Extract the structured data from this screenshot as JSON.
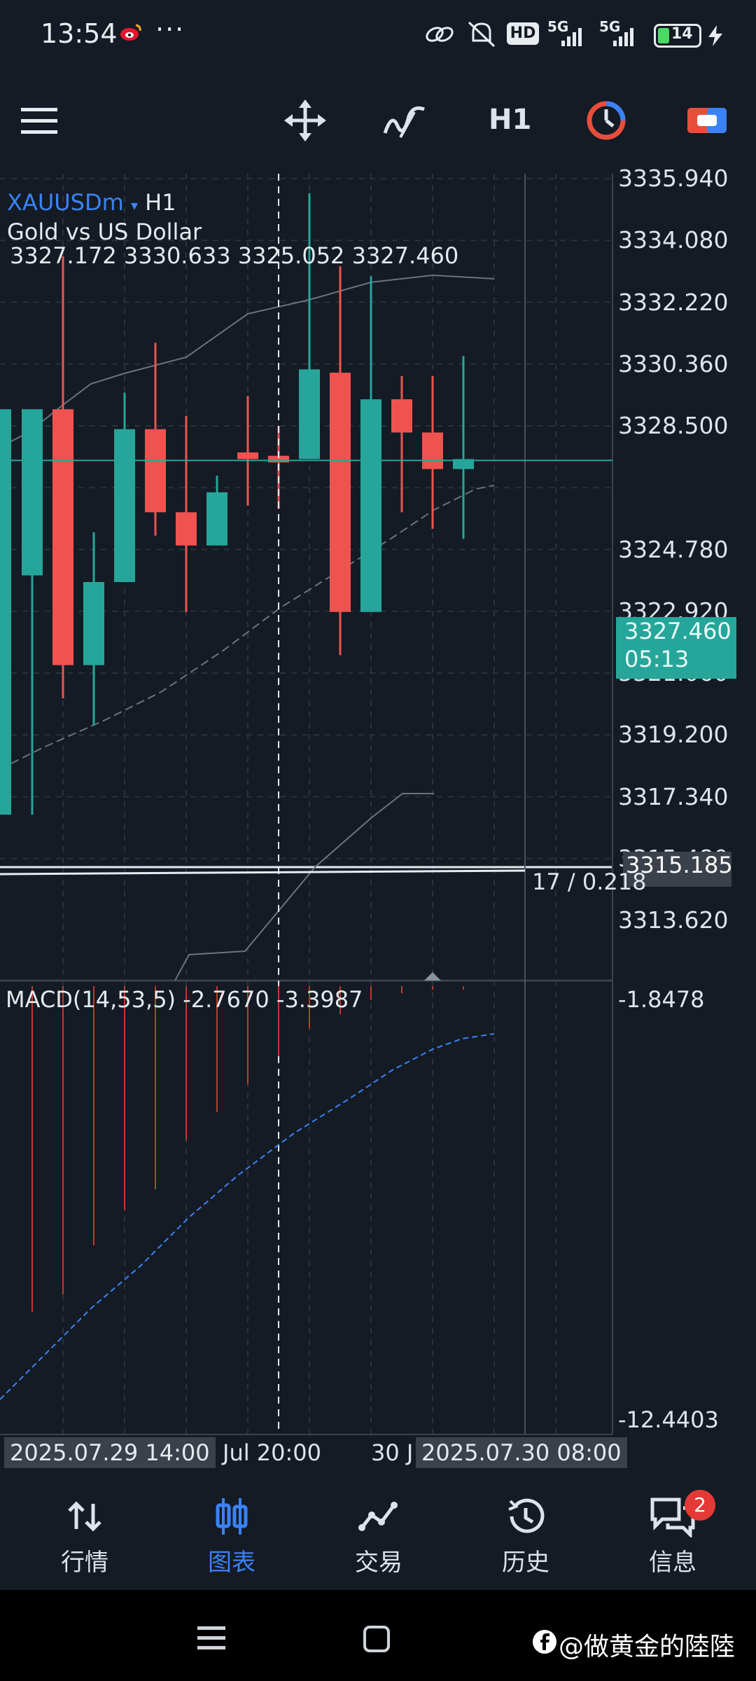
{
  "status_bar": {
    "time": "13:54",
    "more": "···",
    "network_1": "5G",
    "network_2": "5G",
    "battery": "14",
    "hd_badge": "HD"
  },
  "toolbar": {
    "timeframe": "H1",
    "icons": [
      "menu-icon",
      "crosshair-move-icon",
      "indicators-icon",
      "timeframe-label",
      "one-click-trading-icon",
      "trade-panel-icon"
    ]
  },
  "chart": {
    "symbol": "XAUUSDm",
    "timeframe": "H1",
    "description": "Gold vs US Dollar",
    "ohlc": "3327.172 3330.633 3325.052 3327.460",
    "price_axis": [
      "3335.940",
      "3334.080",
      "3332.220",
      "3330.360",
      "3328.500",
      "3324.780",
      "3322.920",
      "3321.060",
      "3319.200",
      "3317.340",
      "3315.480",
      "3313.620"
    ],
    "last_price": "3327.460",
    "countdown": "05:13",
    "crosshair_price": "3315.185",
    "crosshair_info": "17 / 0.218",
    "macd_label": "MACD(14,53,5) -2.7670 -3.3987",
    "macd_axis_top": "-1.8478",
    "macd_axis_bottom": "-12.4403",
    "date_left_box": "2025.07.29 14:00",
    "date_mid": "Jul 20:00",
    "date_mid2": "30 J",
    "date_right_box": "2025.07.30 08:00",
    "colors": {
      "bull": "#26a69a",
      "bear": "#ef5350",
      "accent": "#3b82f6",
      "bg": "#141b24"
    }
  },
  "chart_data": {
    "type": "candlestick",
    "symbol": "XAUUSDm",
    "timeframe": "H1",
    "price_range": [
      3313.0,
      3336.5
    ],
    "candles": [
      {
        "o": 3324.0,
        "h": 3329.0,
        "l": 3316.8,
        "c": 3329.0
      },
      {
        "o": 3329.0,
        "h": 3333.6,
        "l": 3320.3,
        "c": 3321.3
      },
      {
        "o": 3321.3,
        "h": 3325.3,
        "l": 3319.5,
        "c": 3323.8
      },
      {
        "o": 3323.8,
        "h": 3329.5,
        "l": 3323.8,
        "c": 3328.4
      },
      {
        "o": 3328.4,
        "h": 3331.0,
        "l": 3325.2,
        "c": 3325.9
      },
      {
        "o": 3325.9,
        "h": 3328.8,
        "l": 3322.9,
        "c": 3324.9
      },
      {
        "o": 3324.9,
        "h": 3327.0,
        "l": 3324.9,
        "c": 3326.5
      },
      {
        "o": 3327.7,
        "h": 3329.4,
        "l": 3326.1,
        "c": 3327.5
      },
      {
        "o": 3327.6,
        "h": 3328.5,
        "l": 3326.0,
        "c": 3327.4
      },
      {
        "o": 3327.5,
        "h": 3335.5,
        "l": 3327.5,
        "c": 3330.2
      },
      {
        "o": 3330.1,
        "h": 3333.3,
        "l": 3321.6,
        "c": 3322.9
      },
      {
        "o": 3322.9,
        "h": 3333.0,
        "l": 3322.9,
        "c": 3329.3
      },
      {
        "o": 3329.3,
        "h": 3330.0,
        "l": 3325.9,
        "c": 3328.3
      },
      {
        "o": 3328.3,
        "h": 3330.0,
        "l": 3325.4,
        "c": 3327.2
      },
      {
        "o": 3327.2,
        "h": 3330.6,
        "l": 3325.1,
        "c": 3327.5
      }
    ],
    "macd_range": [
      -12.4403,
      -1.8478
    ]
  },
  "bottom_nav": [
    {
      "label": "行情",
      "icon": "quotes-icon",
      "active": false
    },
    {
      "label": "图表",
      "icon": "chart-icon",
      "active": true
    },
    {
      "label": "交易",
      "icon": "trade-icon",
      "active": false
    },
    {
      "label": "历史",
      "icon": "history-icon",
      "active": false
    },
    {
      "label": "信息",
      "icon": "messages-icon",
      "active": false,
      "badge": "2"
    }
  ],
  "watermark": "@做黄金的陸陸"
}
